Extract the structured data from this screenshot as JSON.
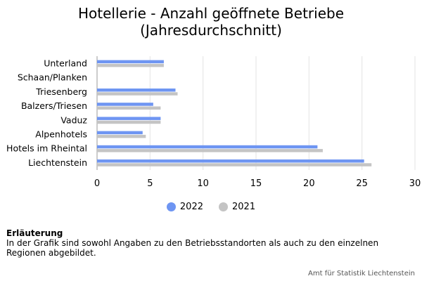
{
  "title_line1": "Hotellerie - Anzahl geöffnete Betriebe",
  "title_line2": "(Jahresdurchschnitt)",
  "chart_data": {
    "type": "bar",
    "orientation": "horizontal",
    "categories": [
      "Unterland",
      "Schaan/Planken",
      "Triesenberg",
      "Balzers/Triesen",
      "Vaduz",
      "Alpenhotels",
      "Hotels im Rheintal",
      "Liechtenstein"
    ],
    "series": [
      {
        "name": "2022",
        "color": "#6e95f2",
        "values": [
          6.3,
          0,
          7.4,
          5.3,
          6.0,
          4.3,
          20.8,
          25.2
        ]
      },
      {
        "name": "2021",
        "color": "#c4c4c4",
        "values": [
          6.3,
          0,
          7.6,
          6.0,
          6.0,
          4.6,
          21.3,
          25.9
        ]
      }
    ],
    "xlim": [
      0,
      30
    ],
    "xticks": [
      0,
      5,
      10,
      15,
      20,
      25,
      30
    ],
    "grid": true,
    "legend": "bottom"
  },
  "note": {
    "title": "Erläuterung",
    "text": "In der Grafik sind sowohl Angaben zu den Betriebsstandorten als auch zu den einzelnen Regionen abgebildet."
  },
  "credit": "Amt für Statistik Liechtenstein"
}
